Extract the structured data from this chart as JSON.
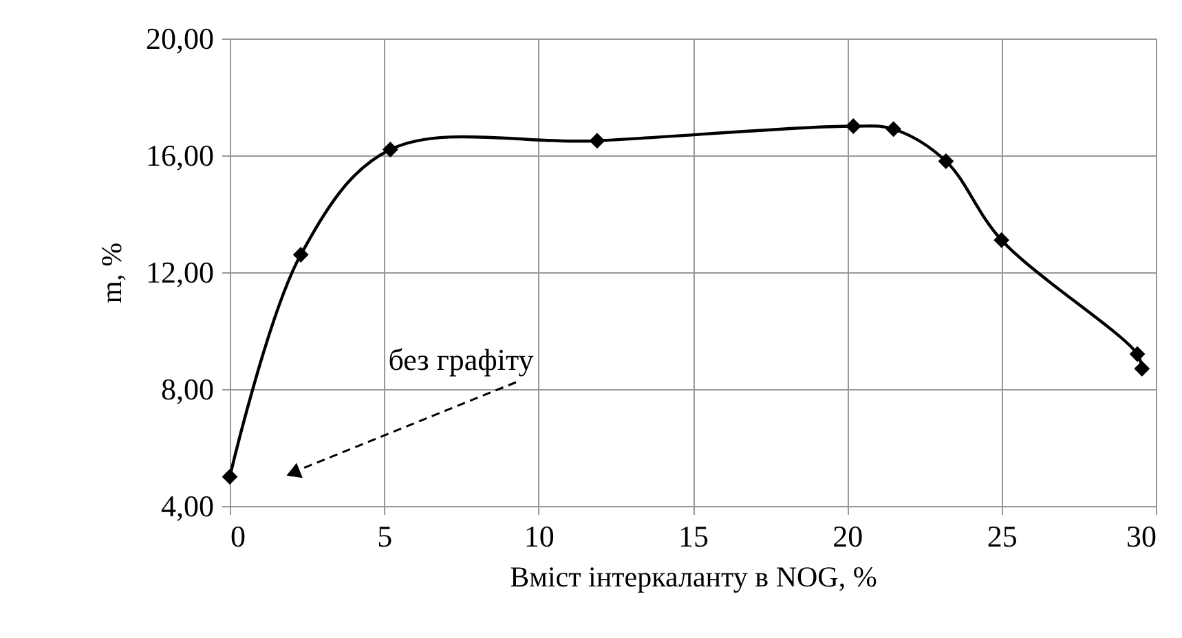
{
  "chart_data": {
    "type": "line",
    "xlabel": "Вміст інтеркаланту в NOG, %",
    "ylabel": "m, %",
    "x": [
      0,
      2.3,
      5.2,
      11.9,
      20.2,
      21.5,
      23.2,
      25.0,
      29.4,
      29.55
    ],
    "series": [
      {
        "color": "#000000",
        "values": [
          5.0,
          12.6,
          16.2,
          16.5,
          17.0,
          16.9,
          15.8,
          13.1,
          9.2,
          8.7
        ]
      }
    ],
    "xlim": [
      0,
      30
    ],
    "xticks": [
      0,
      5,
      10,
      15,
      20,
      25,
      30
    ],
    "ylim": [
      4,
      20
    ],
    "yticks": [
      {
        "value": 4,
        "label": "4,00"
      },
      {
        "value": 8,
        "label": "8,00"
      },
      {
        "value": 12,
        "label": "12,00"
      },
      {
        "value": 16,
        "label": "16,00"
      },
      {
        "value": 20,
        "label": "20,00"
      }
    ],
    "grid": true,
    "marker": "diamond",
    "line_style": "solid",
    "annotations": [
      "без графіту"
    ]
  }
}
